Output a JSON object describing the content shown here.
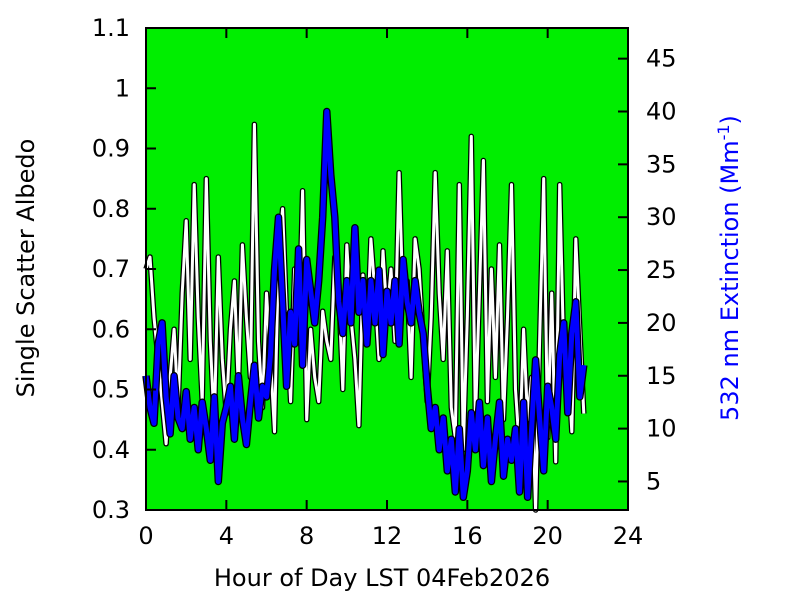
{
  "chart_data": {
    "type": "line",
    "xlabel": "Hour of Day LST 04Feb2026",
    "ylabel_left": "Single Scatter Albedo",
    "ylabel_right_main": "532 nm Extinction (Mm",
    "ylabel_right_sup": "-1",
    "ylabel_right_close": ")",
    "xlim": [
      0,
      24
    ],
    "ylim_left": [
      0.3,
      1.1
    ],
    "ylim_right": [
      2.3,
      47.9
    ],
    "x_ticks": [
      0,
      4,
      8,
      12,
      16,
      20,
      24
    ],
    "x_tick_labels": [
      "0",
      "4",
      "8",
      "12",
      "16",
      "20",
      "24"
    ],
    "y_left_ticks": [
      0.3,
      0.4,
      0.5,
      0.6,
      0.7,
      0.8,
      0.9,
      1.0,
      1.1
    ],
    "y_left_tick_labels": [
      "0.3",
      "0.4",
      "0.5",
      "0.6",
      "0.7",
      "0.8",
      "0.9",
      "1",
      "1.1"
    ],
    "y_right_ticks": [
      5,
      10,
      15,
      20,
      25,
      30,
      35,
      40,
      45
    ],
    "y_right_tick_labels": [
      "5",
      "10",
      "15",
      "20",
      "25",
      "30",
      "35",
      "40",
      "45"
    ],
    "grid": false,
    "plot_background": "#00ee00",
    "series": [
      {
        "axis": "left",
        "color": "#ffffff",
        "outline": "#000000",
        "x": [
          0.0,
          0.2,
          0.4,
          0.6,
          0.8,
          1.0,
          1.2,
          1.4,
          1.6,
          1.8,
          2.0,
          2.2,
          2.4,
          2.6,
          2.8,
          3.0,
          3.2,
          3.4,
          3.6,
          3.8,
          4.0,
          4.2,
          4.4,
          4.6,
          4.8,
          5.0,
          5.2,
          5.4,
          5.6,
          5.8,
          6.0,
          6.2,
          6.4,
          6.6,
          6.8,
          7.0,
          7.2,
          7.4,
          7.6,
          7.8,
          8.0,
          8.2,
          8.4,
          8.6,
          8.8,
          9.0,
          9.2,
          9.4,
          9.6,
          9.8,
          10.0,
          10.2,
          10.4,
          10.6,
          10.8,
          11.0,
          11.2,
          11.4,
          11.6,
          11.8,
          12.0,
          12.2,
          12.4,
          12.6,
          12.8,
          13.0,
          13.2,
          13.4,
          13.6,
          13.8,
          14.0,
          14.2,
          14.4,
          14.6,
          14.8,
          15.0,
          15.2,
          15.4,
          15.6,
          15.8,
          16.0,
          16.2,
          16.4,
          16.6,
          16.8,
          17.0,
          17.2,
          17.4,
          17.6,
          17.8,
          18.0,
          18.2,
          18.4,
          18.6,
          18.8,
          19.0,
          19.2,
          19.4,
          19.6,
          19.8,
          20.0,
          20.2,
          20.4,
          20.6,
          20.8,
          21.0,
          21.2,
          21.4,
          21.6,
          21.8
        ],
        "values": [
          0.7,
          0.72,
          0.62,
          0.55,
          0.48,
          0.41,
          0.52,
          0.6,
          0.47,
          0.66,
          0.78,
          0.55,
          0.84,
          0.62,
          0.48,
          0.85,
          0.58,
          0.44,
          0.72,
          0.55,
          0.46,
          0.6,
          0.68,
          0.5,
          0.74,
          0.62,
          0.52,
          0.94,
          0.58,
          0.47,
          0.66,
          0.55,
          0.43,
          0.72,
          0.8,
          0.62,
          0.48,
          0.7,
          0.58,
          0.83,
          0.45,
          0.6,
          0.52,
          0.48,
          0.63,
          0.58,
          0.55,
          0.72,
          0.66,
          0.5,
          0.74,
          0.62,
          0.55,
          0.44,
          0.69,
          0.58,
          0.75,
          0.66,
          0.55,
          0.73,
          0.62,
          0.7,
          0.58,
          0.86,
          0.64,
          0.68,
          0.52,
          0.75,
          0.7,
          0.58,
          0.48,
          0.62,
          0.86,
          0.66,
          0.55,
          0.73,
          0.47,
          0.42,
          0.84,
          0.4,
          0.62,
          0.92,
          0.45,
          0.66,
          0.88,
          0.48,
          0.7,
          0.52,
          0.74,
          0.45,
          0.62,
          0.84,
          0.5,
          0.4,
          0.6,
          0.45,
          0.52,
          0.3,
          0.58,
          0.85,
          0.42,
          0.66,
          0.38,
          0.84,
          0.56,
          0.55,
          0.43,
          0.75,
          0.6,
          0.46
        ]
      },
      {
        "axis": "right",
        "color": "#0000ff",
        "outline": "#000000",
        "x": [
          0.0,
          0.2,
          0.4,
          0.6,
          0.8,
          1.0,
          1.2,
          1.4,
          1.6,
          1.8,
          2.0,
          2.2,
          2.4,
          2.6,
          2.8,
          3.0,
          3.2,
          3.4,
          3.6,
          3.8,
          4.0,
          4.2,
          4.4,
          4.6,
          4.8,
          5.0,
          5.2,
          5.4,
          5.6,
          5.8,
          6.0,
          6.2,
          6.4,
          6.6,
          6.8,
          7.0,
          7.2,
          7.4,
          7.6,
          7.8,
          8.0,
          8.2,
          8.4,
          8.6,
          8.8,
          9.0,
          9.2,
          9.4,
          9.6,
          9.8,
          10.0,
          10.2,
          10.4,
          10.6,
          10.8,
          11.0,
          11.2,
          11.4,
          11.6,
          11.8,
          12.0,
          12.2,
          12.4,
          12.6,
          12.8,
          13.0,
          13.2,
          13.4,
          13.6,
          13.8,
          14.0,
          14.2,
          14.4,
          14.6,
          14.8,
          15.0,
          15.2,
          15.4,
          15.6,
          15.8,
          16.0,
          16.2,
          16.4,
          16.6,
          16.8,
          17.0,
          17.2,
          17.4,
          17.6,
          17.8,
          18.0,
          18.2,
          18.4,
          18.6,
          18.8,
          19.0,
          19.2,
          19.4,
          19.6,
          19.8,
          20.0,
          20.2,
          20.4,
          20.6,
          20.8,
          21.0,
          21.2,
          21.4,
          21.6,
          21.8
        ],
        "values": [
          15.0,
          12.0,
          10.5,
          18.0,
          20.0,
          13.0,
          9.5,
          15.0,
          11.0,
          10.0,
          13.5,
          9.0,
          12.0,
          8.0,
          12.5,
          10.0,
          7.0,
          13.0,
          5.0,
          10.5,
          12.0,
          14.0,
          9.0,
          15.0,
          11.0,
          8.5,
          12.5,
          16.0,
          11.0,
          14.0,
          13.0,
          17.0,
          25.0,
          30.0,
          22.0,
          14.0,
          21.0,
          18.0,
          27.0,
          16.0,
          26.0,
          23.0,
          20.0,
          24.0,
          30.0,
          40.0,
          34.0,
          30.0,
          22.0,
          19.0,
          24.0,
          20.0,
          29.0,
          21.0,
          24.0,
          18.0,
          24.0,
          20.0,
          25.0,
          17.0,
          23.0,
          20.0,
          24.0,
          18.0,
          26.0,
          22.0,
          20.0,
          24.0,
          21.0,
          19.0,
          14.0,
          10.0,
          12.0,
          8.0,
          11.0,
          6.0,
          9.0,
          4.0,
          10.0,
          3.5,
          6.0,
          11.5,
          8.0,
          12.5,
          6.5,
          11.0,
          5.0,
          9.0,
          12.5,
          5.5,
          9.0,
          7.0,
          10.0,
          4.0,
          12.5,
          3.5,
          10.0,
          16.5,
          11.0,
          6.0,
          14.0,
          12.0,
          9.0,
          17.0,
          20.0,
          11.5,
          19.0,
          22.0,
          13.0,
          16.0
        ]
      }
    ]
  }
}
